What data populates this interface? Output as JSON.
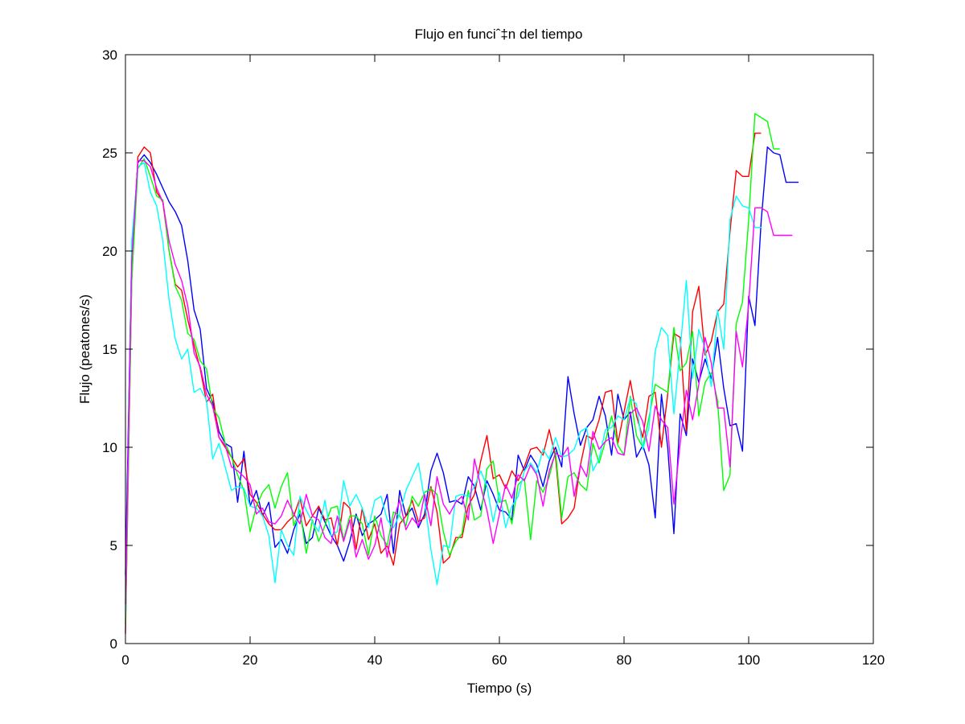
{
  "chart_data": {
    "type": "line",
    "title": "Flujo en funciˆ‡n del tiempo",
    "xlabel": "Tiempo (s)",
    "ylabel": "Flujo (peatones/s)",
    "xlim": [
      0,
      120
    ],
    "ylim": [
      0,
      30
    ],
    "xticks": [
      0,
      20,
      40,
      60,
      80,
      100,
      120
    ],
    "yticks": [
      0,
      5,
      10,
      15,
      20,
      25,
      30
    ],
    "grid": false,
    "legend": "none",
    "series": [
      {
        "color": "#0000ff",
        "x": [
          0,
          1,
          2,
          3,
          4,
          5,
          6,
          7,
          8,
          9,
          10,
          11,
          12,
          13,
          14,
          15,
          16,
          17,
          18,
          19,
          20,
          21,
          22,
          23,
          24,
          25,
          26,
          27,
          28,
          29,
          30,
          31,
          32,
          33,
          34,
          35,
          36,
          37,
          38,
          39,
          40,
          41,
          42,
          43,
          44,
          45,
          46,
          47,
          48,
          49,
          50,
          51,
          52,
          53,
          54,
          55,
          56,
          57,
          58,
          59,
          60,
          61,
          62,
          63,
          64,
          65,
          66,
          67,
          68,
          69,
          70,
          71,
          72,
          73,
          74,
          75,
          76,
          77,
          78,
          79,
          80,
          81,
          82,
          83,
          84,
          85,
          86,
          87,
          88,
          89,
          90,
          91,
          92,
          93,
          94,
          95,
          96,
          97,
          98,
          99,
          100,
          101,
          102,
          103,
          104,
          105,
          106,
          107,
          108
        ],
        "y": [
          3.5,
          20.0,
          24.5,
          24.9,
          24.5,
          23.9,
          23.2,
          22.5,
          22.0,
          21.3,
          19.5,
          17.0,
          16.0,
          13.0,
          12.3,
          10.8,
          10.2,
          10.0,
          7.2,
          9.8,
          7.0,
          7.8,
          6.5,
          7.2,
          4.9,
          5.3,
          4.6,
          5.8,
          6.6,
          5.1,
          5.4,
          6.9,
          6.2,
          5.5,
          5.0,
          4.2,
          5.2,
          6.6,
          5.5,
          6.1,
          6.3,
          6.6,
          7.6,
          4.6,
          7.8,
          6.5,
          6.9,
          5.9,
          6.6,
          8.8,
          9.7,
          8.7,
          7.2,
          7.3,
          7.1,
          8.5,
          8.0,
          6.8,
          8.3,
          7.6,
          6.8,
          6.7,
          6.3,
          9.6,
          8.8,
          9.6,
          9.1,
          8.0,
          9.3,
          10.0,
          9.0,
          13.6,
          11.7,
          10.1,
          11.0,
          11.4,
          12.6,
          11.6,
          9.6,
          12.7,
          11.4,
          11.8,
          9.5,
          10.1,
          9.1,
          6.4,
          12.7,
          10.0,
          5.6,
          11.7,
          10.6,
          14.5,
          13.3,
          14.5,
          13.5,
          15.6,
          13.0,
          11.1,
          11.2,
          9.8,
          17.7,
          16.2,
          21.5,
          25.3,
          25.0,
          24.9,
          23.5,
          23.5,
          23.5
        ]
      },
      {
        "color": "#ff0000",
        "x": [
          0,
          1,
          2,
          3,
          4,
          5,
          6,
          7,
          8,
          9,
          10,
          11,
          12,
          13,
          14,
          15,
          16,
          17,
          18,
          19,
          20,
          21,
          22,
          23,
          24,
          25,
          26,
          27,
          28,
          29,
          30,
          31,
          32,
          33,
          34,
          35,
          36,
          37,
          38,
          39,
          40,
          41,
          42,
          43,
          44,
          45,
          46,
          47,
          48,
          49,
          50,
          51,
          52,
          53,
          54,
          55,
          56,
          57,
          58,
          59,
          60,
          61,
          62,
          63,
          64,
          65,
          66,
          67,
          68,
          69,
          70,
          71,
          72,
          73,
          74,
          75,
          76,
          77,
          78,
          79,
          80,
          81,
          82,
          83,
          84,
          85,
          86,
          87,
          88,
          89,
          90,
          91,
          92,
          93,
          94,
          95,
          96,
          97,
          98,
          99,
          100,
          101,
          102
        ],
        "y": [
          0.5,
          18.5,
          24.8,
          25.3,
          25.0,
          23.0,
          22.5,
          20.0,
          18.3,
          18.0,
          16.5,
          15.2,
          14.0,
          12.3,
          12.7,
          10.5,
          10.0,
          9.5,
          9.0,
          9.4,
          7.6,
          7.2,
          6.6,
          6.1,
          5.8,
          5.8,
          6.2,
          6.5,
          7.4,
          6.0,
          6.5,
          7.0,
          6.3,
          6.4,
          5.0,
          7.2,
          6.9,
          4.8,
          6.9,
          5.3,
          6.1,
          4.6,
          5.0,
          4.0,
          6.1,
          6.5,
          7.3,
          6.2,
          6.4,
          8.0,
          6.7,
          4.1,
          4.4,
          5.4,
          5.4,
          7.0,
          7.6,
          9.3,
          10.6,
          8.4,
          8.6,
          7.9,
          8.8,
          8.3,
          9.0,
          9.9,
          10.0,
          9.6,
          10.9,
          9.5,
          6.1,
          6.4,
          6.9,
          9.1,
          10.6,
          10.4,
          11.4,
          12.8,
          12.9,
          10.2,
          11.8,
          13.4,
          11.6,
          10.5,
          12.6,
          12.8,
          10.0,
          12.7,
          15.8,
          15.6,
          10.8,
          16.9,
          18.2,
          14.7,
          15.4,
          16.9,
          17.3,
          21.0,
          24.1,
          23.8,
          23.8,
          26.0,
          26.0
        ]
      },
      {
        "color": "#00ff00",
        "x": [
          0,
          1,
          2,
          3,
          4,
          5,
          6,
          7,
          8,
          9,
          10,
          11,
          12,
          13,
          14,
          15,
          16,
          17,
          18,
          19,
          20,
          21,
          22,
          23,
          24,
          25,
          26,
          27,
          28,
          29,
          30,
          31,
          32,
          33,
          34,
          35,
          36,
          37,
          38,
          39,
          40,
          41,
          42,
          43,
          44,
          45,
          46,
          47,
          48,
          49,
          50,
          51,
          52,
          53,
          54,
          55,
          56,
          57,
          58,
          59,
          60,
          61,
          62,
          63,
          64,
          65,
          66,
          67,
          68,
          69,
          70,
          71,
          72,
          73,
          74,
          75,
          76,
          77,
          78,
          79,
          80,
          81,
          82,
          83,
          84,
          85,
          86,
          87,
          88,
          89,
          90,
          91,
          92,
          93,
          94,
          95,
          96,
          97,
          98,
          99,
          100,
          101,
          102,
          103,
          104,
          105
        ],
        "y": [
          1.0,
          18.5,
          24.2,
          24.7,
          23.8,
          22.8,
          22.6,
          20.0,
          18.2,
          17.5,
          15.8,
          15.5,
          14.4,
          14.0,
          12.0,
          11.5,
          10.2,
          9.5,
          8.6,
          7.8,
          5.7,
          7.0,
          7.7,
          8.1,
          6.9,
          8.0,
          8.7,
          6.0,
          6.8,
          4.6,
          6.3,
          5.2,
          6.0,
          6.9,
          7.0,
          5.3,
          6.5,
          6.5,
          6.1,
          4.5,
          6.5,
          5.5,
          5.0,
          6.7,
          6.5,
          6.0,
          7.5,
          7.0,
          7.7,
          7.9,
          7.6,
          5.7,
          4.5,
          5.2,
          5.6,
          7.8,
          6.3,
          6.5,
          8.9,
          9.3,
          7.2,
          7.3,
          6.1,
          8.1,
          8.4,
          5.3,
          8.3,
          7.7,
          8.5,
          9.8,
          6.4,
          8.5,
          8.7,
          8.1,
          7.8,
          10.2,
          9.2,
          10.3,
          11.6,
          10.1,
          9.6,
          12.6,
          10.6,
          10.0,
          11.5,
          13.2,
          13.0,
          12.8,
          16.1,
          13.9,
          14.3,
          15.9,
          11.6,
          13.3,
          13.8,
          12.4,
          7.8,
          8.6,
          16.3,
          17.4,
          21.6,
          27.0,
          26.8,
          26.6,
          25.2,
          25.2
        ]
      },
      {
        "color": "#00ffff",
        "x": [
          0,
          1,
          2,
          3,
          4,
          5,
          6,
          7,
          8,
          9,
          10,
          11,
          12,
          13,
          14,
          15,
          16,
          17,
          18,
          19,
          20,
          21,
          22,
          23,
          24,
          25,
          26,
          27,
          28,
          29,
          30,
          31,
          32,
          33,
          34,
          35,
          36,
          37,
          38,
          39,
          40,
          41,
          42,
          43,
          44,
          45,
          46,
          47,
          48,
          49,
          50,
          51,
          52,
          53,
          54,
          55,
          56,
          57,
          58,
          59,
          60,
          61,
          62,
          63,
          64,
          65,
          66,
          67,
          68,
          69,
          70,
          71,
          72,
          73,
          74,
          75,
          76,
          77,
          78,
          79,
          80,
          81,
          82,
          83,
          84,
          85,
          86,
          87,
          88,
          89,
          90,
          91,
          92,
          93,
          94,
          95,
          96,
          97,
          98,
          99,
          100,
          101,
          102
        ],
        "y": [
          1.5,
          20.5,
          24.3,
          24.5,
          23.0,
          22.3,
          20.5,
          17.5,
          15.5,
          14.5,
          15.0,
          12.8,
          13.0,
          12.4,
          9.4,
          10.2,
          9.0,
          7.8,
          8.0,
          7.9,
          7.0,
          6.9,
          6.5,
          5.5,
          3.1,
          5.8,
          5.0,
          4.5,
          7.5,
          6.8,
          6.2,
          5.7,
          7.3,
          5.5,
          5.7,
          8.3,
          7.0,
          7.6,
          6.9,
          5.9,
          7.3,
          7.5,
          6.3,
          5.9,
          6.6,
          7.8,
          8.5,
          9.2,
          7.3,
          4.8,
          3.0,
          5.0,
          4.9,
          7.5,
          7.6,
          7.5,
          8.0,
          8.8,
          8.0,
          6.2,
          7.7,
          5.9,
          7.0,
          7.5,
          8.8,
          9.2,
          8.7,
          9.9,
          9.4,
          10.5,
          9.5,
          9.6,
          9.9,
          10.8,
          11.0,
          8.8,
          9.4,
          10.9,
          11.0,
          11.6,
          11.4,
          12.5,
          12.2,
          9.9,
          11.0,
          14.9,
          16.1,
          15.7,
          11.7,
          15.0,
          18.5,
          13.5,
          16.0,
          15.0,
          13.1,
          17.0,
          15.0,
          21.6,
          22.8,
          22.3,
          22.2,
          21.2,
          21.2
        ]
      },
      {
        "color": "#ff00ff",
        "x": [
          0,
          1,
          2,
          3,
          4,
          5,
          6,
          7,
          8,
          9,
          10,
          11,
          12,
          13,
          14,
          15,
          16,
          17,
          18,
          19,
          20,
          21,
          22,
          23,
          24,
          25,
          26,
          27,
          28,
          29,
          30,
          31,
          32,
          33,
          34,
          35,
          36,
          37,
          38,
          39,
          40,
          41,
          42,
          43,
          44,
          45,
          46,
          47,
          48,
          49,
          50,
          51,
          52,
          53,
          54,
          55,
          56,
          57,
          58,
          59,
          60,
          61,
          62,
          63,
          64,
          65,
          66,
          67,
          68,
          69,
          70,
          71,
          72,
          73,
          74,
          75,
          76,
          77,
          78,
          79,
          80,
          81,
          82,
          83,
          84,
          85,
          86,
          87,
          88,
          89,
          90,
          91,
          92,
          93,
          94,
          95,
          96,
          97,
          98,
          99,
          100,
          101,
          102,
          103,
          104,
          105,
          106,
          107
        ],
        "y": [
          2.0,
          19.5,
          24.6,
          24.6,
          24.3,
          23.2,
          22.5,
          20.5,
          19.3,
          18.5,
          17.2,
          14.8,
          14.1,
          12.7,
          12.1,
          10.5,
          10.1,
          9.0,
          8.8,
          8.5,
          8.1,
          6.6,
          6.9,
          6.2,
          6.1,
          6.5,
          7.3,
          6.6,
          6.1,
          7.6,
          6.5,
          6.3,
          5.4,
          5.1,
          6.5,
          5.2,
          6.3,
          4.4,
          5.3,
          4.3,
          5.0,
          6.4,
          4.4,
          6.3,
          7.3,
          5.8,
          6.4,
          6.0,
          7.6,
          6.0,
          8.5,
          7.1,
          6.6,
          7.2,
          7.5,
          6.3,
          9.4,
          8.0,
          6.8,
          5.1,
          6.6,
          8.1,
          7.4,
          8.6,
          8.3,
          9.1,
          8.6,
          7.0,
          8.8,
          9.7,
          9.5,
          10.0,
          7.5,
          9.1,
          8.5,
          10.8,
          9.9,
          10.3,
          10.5,
          9.7,
          9.6,
          11.7,
          12.0,
          11.3,
          9.8,
          12.1,
          11.4,
          11.0,
          7.1,
          10.2,
          12.9,
          11.4,
          13.2,
          15.6,
          14.3,
          12.0,
          12.0,
          9.0,
          15.9,
          14.1,
          17.3,
          22.2,
          22.2,
          22.0,
          20.8,
          20.8,
          20.8,
          20.8
        ]
      }
    ]
  }
}
